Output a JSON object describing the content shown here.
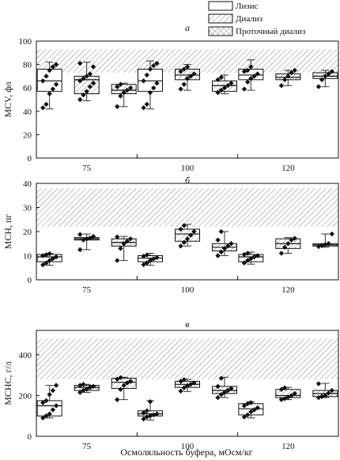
{
  "legend": [
    {
      "label": "Лизис",
      "pattern": "plain"
    },
    {
      "label": "Диализ",
      "pattern": "hatch"
    },
    {
      "label": "Проточный диализ",
      "pattern": "crosshatch"
    }
  ],
  "xlabel": "Осмоляльность буфера, мОсм/кг",
  "chart_data": [
    {
      "type": "box",
      "panel_label": "а",
      "ylabel": "MCV, фл",
      "ylim": [
        0,
        100
      ],
      "yticks": [
        0,
        20,
        40,
        60,
        80,
        100
      ],
      "categories": [
        "75",
        "100",
        "120"
      ],
      "reference_band": [
        73,
        93
      ],
      "grid": false,
      "series": [
        {
          "name": "Лизис",
          "boxes": [
            {
              "min": 42,
              "q1": 57,
              "median": 66,
              "q3": 76,
              "max": 82,
              "points": [
                43,
                46,
                55,
                59,
                63,
                66,
                70,
                75,
                78,
                80
              ]
            },
            {
              "min": 42,
              "q1": 57,
              "median": 66,
              "q3": 76,
              "max": 83,
              "points": [
                43,
                46,
                56,
                60,
                64,
                66,
                71,
                76,
                79,
                81
              ]
            },
            {
              "min": 58,
              "q1": 67,
              "median": 71,
              "q3": 76,
              "max": 84,
              "points": [
                59,
                65,
                68,
                70,
                72,
                74,
                75,
                78
              ]
            }
          ]
        },
        {
          "name": "Диализ",
          "boxes": [
            {
              "min": 49,
              "q1": 55,
              "median": 67,
              "q3": 70,
              "max": 82,
              "points": [
                50,
                54,
                57,
                61,
                64,
                66,
                68,
                70,
                72,
                78,
                81
              ]
            },
            {
              "min": 58,
              "q1": 67,
              "median": 71,
              "q3": 76,
              "max": 80,
              "points": [
                59,
                63,
                68,
                70,
                72,
                74,
                76,
                78
              ]
            },
            {
              "min": 62,
              "q1": 67,
              "median": 69,
              "q3": 72,
              "max": 75,
              "points": [
                62,
                67,
                70,
                73,
                75
              ]
            }
          ]
        },
        {
          "name": "Проточный диализ",
          "boxes": [
            {
              "min": 44,
              "q1": 55,
              "median": 58,
              "q3": 63,
              "max": 64,
              "points": [
                44,
                53,
                56,
                58,
                60,
                61,
                63
              ]
            },
            {
              "min": 55,
              "q1": 57,
              "median": 62,
              "q3": 66,
              "max": 71,
              "points": [
                56,
                58,
                60,
                62,
                64,
                67,
                69
              ]
            },
            {
              "min": 61,
              "q1": 68,
              "median": 70,
              "q3": 73,
              "max": 75,
              "points": [
                61,
                67,
                70,
                72,
                74
              ]
            }
          ]
        }
      ]
    },
    {
      "type": "box",
      "panel_label": "б",
      "ylabel": "MCH, пг",
      "ylim": [
        0,
        40
      ],
      "yticks": [
        0,
        10,
        20,
        30,
        40
      ],
      "categories": [
        "75",
        "100",
        "120"
      ],
      "reference_band": [
        22,
        38
      ],
      "grid": false,
      "series": [
        {
          "name": "Лизис",
          "boxes": [
            {
              "min": 6,
              "q1": 7.5,
              "median": 9.5,
              "q3": 10.5,
              "max": 11,
              "points": [
                6.2,
                7,
                8,
                8.8,
                9.5,
                10,
                10.4,
                10.8
              ]
            },
            {
              "min": 6,
              "q1": 7.5,
              "median": 9,
              "q3": 10,
              "max": 11,
              "points": [
                6.3,
                7,
                8,
                8.7,
                9.2,
                9.8,
                10.3
              ]
            },
            {
              "min": 6.5,
              "q1": 7.5,
              "median": 9.5,
              "q3": 10.5,
              "max": 11.5,
              "points": [
                7,
                8,
                8.8,
                9.5,
                10,
                10.5,
                11
              ]
            }
          ]
        },
        {
          "name": "Диализ",
          "boxes": [
            {
              "min": 12.5,
              "q1": 16.5,
              "median": 17,
              "q3": 17.5,
              "max": 19,
              "points": [
                12.5,
                16.5,
                17,
                17.3,
                18,
                18.8
              ]
            },
            {
              "min": 14,
              "q1": 16,
              "median": 19,
              "q3": 21,
              "max": 23,
              "points": [
                14,
                15.5,
                17,
                18.5,
                20,
                21,
                22.5
              ]
            },
            {
              "min": 11,
              "q1": 13,
              "median": 15,
              "q3": 17,
              "max": 17.5,
              "points": [
                11,
                13.5,
                15,
                16.5,
                17.2
              ]
            }
          ]
        },
        {
          "name": "Проточный диализ",
          "boxes": [
            {
              "min": 8,
              "q1": 14,
              "median": 15.5,
              "q3": 17,
              "max": 18,
              "points": [
                8,
                13,
                15,
                16,
                17,
                17.8
              ]
            },
            {
              "min": 10,
              "q1": 12,
              "median": 13.5,
              "q3": 15,
              "max": 20,
              "points": [
                10,
                11.5,
                13,
                14,
                15,
                16.5,
                20
              ]
            },
            {
              "min": 13.5,
              "q1": 14,
              "median": 14.5,
              "q3": 15,
              "max": 19,
              "points": [
                13.8,
                14.2,
                14.6,
                15,
                19
              ]
            }
          ]
        }
      ]
    },
    {
      "type": "box",
      "panel_label": "в",
      "ylabel": "MCHC, г/л",
      "ylim": [
        0,
        520
      ],
      "yticks": [
        0,
        200,
        400
      ],
      "categories": [
        "75",
        "100",
        "120"
      ],
      "reference_band": [
        280,
        480
      ],
      "grid": false,
      "series": [
        {
          "name": "Лизис",
          "boxes": [
            {
              "min": 90,
              "q1": 100,
              "median": 150,
              "q3": 175,
              "max": 250,
              "points": [
                90,
                100,
                110,
                130,
                150,
                165,
                175,
                205,
                225,
                250
              ]
            },
            {
              "min": 80,
              "q1": 100,
              "median": 110,
              "q3": 125,
              "max": 175,
              "points": [
                85,
                95,
                100,
                105,
                110,
                115,
                125,
                170
              ]
            },
            {
              "min": 90,
              "q1": 105,
              "median": 135,
              "q3": 160,
              "max": 170,
              "points": [
                95,
                105,
                120,
                130,
                140,
                150,
                160,
                165
              ]
            }
          ]
        },
        {
          "name": "Диализ",
          "boxes": [
            {
              "min": 215,
              "q1": 225,
              "median": 240,
              "q3": 250,
              "max": 255,
              "points": [
                215,
                225,
                232,
                240,
                245,
                250,
                255
              ]
            },
            {
              "min": 220,
              "q1": 240,
              "median": 255,
              "q3": 270,
              "max": 280,
              "points": [
                222,
                238,
                248,
                255,
                262,
                270,
                278
              ]
            },
            {
              "min": 180,
              "q1": 190,
              "median": 200,
              "q3": 230,
              "max": 240,
              "points": [
                180,
                185,
                192,
                200,
                210,
                230,
                238
              ]
            }
          ]
        },
        {
          "name": "Проточный диализ",
          "boxes": [
            {
              "min": 180,
              "q1": 235,
              "median": 265,
              "q3": 285,
              "max": 290,
              "points": [
                180,
                230,
                250,
                262,
                270,
                280,
                288
              ]
            },
            {
              "min": 190,
              "q1": 210,
              "median": 225,
              "q3": 245,
              "max": 290,
              "points": [
                190,
                205,
                215,
                225,
                235,
                245,
                285
              ]
            },
            {
              "min": 190,
              "q1": 195,
              "median": 210,
              "q3": 225,
              "max": 260,
              "points": [
                190,
                195,
                200,
                212,
                225,
                258
              ]
            }
          ]
        }
      ]
    }
  ]
}
